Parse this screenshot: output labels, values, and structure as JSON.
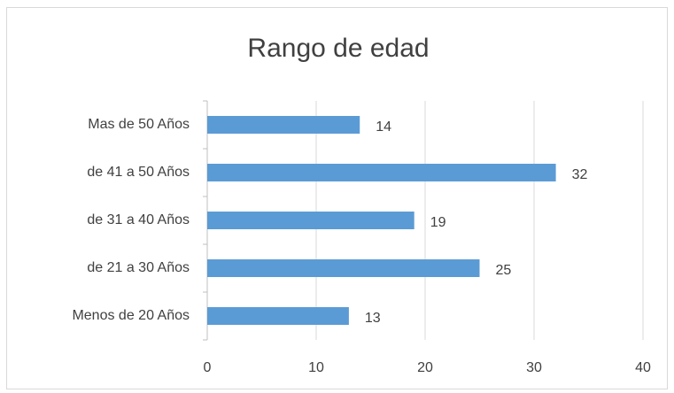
{
  "chart_data": {
    "type": "barh",
    "title": "Rango de edad",
    "categories": [
      "Menos de 20 Años",
      "de 21 a 30 Años",
      "de 31 a 40 Años",
      "de 41 a 50 Años",
      "Mas de 50 Años"
    ],
    "values": [
      13,
      25,
      19,
      32,
      14
    ],
    "color": "#5b9bd5",
    "xlim": [
      0,
      40
    ],
    "xticks": [
      0,
      10,
      20,
      30,
      40
    ],
    "grid": true
  }
}
